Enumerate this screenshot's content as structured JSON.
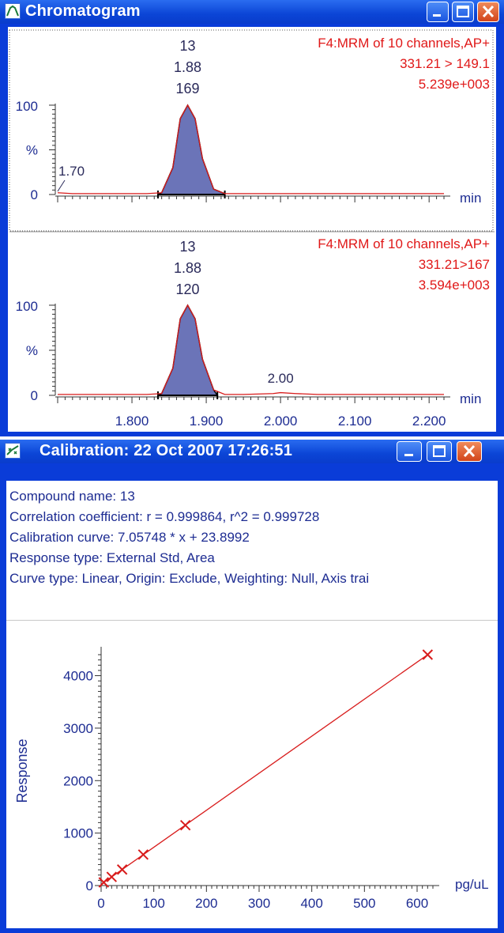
{
  "chromatogram_window": {
    "title": "Chromatogram",
    "icon": "chromatogram-peak-icon",
    "controls": [
      "minimize-icon",
      "maximize-icon",
      "close-icon"
    ]
  },
  "calibration_window": {
    "title": "Calibration: 22 Oct 2007 17:26:51",
    "icon": "calibration-curve-icon",
    "controls": [
      "minimize-icon",
      "maximize-icon",
      "close-icon"
    ],
    "info": {
      "compound": "Compound name: 13",
      "correlation": "Correlation coefficient: r = 0.999864, r^2 = 0.999728",
      "curve": "Calibration curve: 7.05748 * x + 23.8992",
      "response_type": "Response type: External Std, Area",
      "curve_type": "Curve type: Linear, Origin: Exclude, Weighting: Null, Axis trai"
    }
  },
  "colors": {
    "window_frame": "#0a3cd8",
    "trace": "#d81c1c",
    "peak_fill": "#6b74b8",
    "axis_text": "#1d2c92",
    "annotation_text": "#e01818"
  },
  "chart_data": [
    {
      "type": "line",
      "peak_label": [
        "13",
        "1.88",
        "169"
      ],
      "annotation": [
        "F4:MRM of 10 channels,AP+",
        "331.21 > 149.1",
        "5.239e+003"
      ],
      "y_ticks": [
        "100",
        "%",
        "0"
      ],
      "x_unit": "min",
      "extra_label": "1.70",
      "xlim": [
        1.7,
        2.22
      ],
      "ylim": [
        0,
        100
      ],
      "x": [
        1.7,
        1.72,
        1.75,
        1.78,
        1.8,
        1.82,
        1.84,
        1.855,
        1.865,
        1.875,
        1.885,
        1.895,
        1.91,
        1.925,
        1.95,
        1.99,
        2.05,
        2.1,
        2.15,
        2.22
      ],
      "values": [
        2,
        1,
        1,
        1,
        1,
        1,
        2,
        30,
        85,
        100,
        85,
        40,
        6,
        1,
        1,
        1,
        1,
        1,
        1,
        1
      ],
      "peak_range": [
        1.835,
        1.925
      ]
    },
    {
      "type": "line",
      "peak_label": [
        "13",
        "1.88",
        "120"
      ],
      "annotation": [
        "F4:MRM of 10 channels,AP+",
        "331.21>167",
        "3.594e+003"
      ],
      "y_ticks": [
        "100",
        "%",
        "0"
      ],
      "x_unit": "min",
      "extra_label": "2.00",
      "xlim": [
        1.7,
        2.22
      ],
      "ylim": [
        0,
        100
      ],
      "x_tick_labels": [
        "1.800",
        "1.900",
        "2.000",
        "2.100",
        "2.200"
      ],
      "x": [
        1.7,
        1.72,
        1.75,
        1.78,
        1.8,
        1.82,
        1.84,
        1.855,
        1.865,
        1.875,
        1.885,
        1.895,
        1.91,
        1.925,
        1.95,
        1.99,
        2.0,
        2.02,
        2.05,
        2.1,
        2.15,
        2.22
      ],
      "values": [
        1,
        1,
        1,
        1,
        1,
        1,
        2,
        30,
        85,
        100,
        85,
        40,
        6,
        1,
        1,
        2,
        3,
        2,
        1,
        1,
        1,
        1
      ],
      "peak_range": [
        1.835,
        1.915
      ]
    },
    {
      "type": "scatter",
      "ylabel": "Response",
      "x_unit": "pg/uL",
      "xlim": [
        0,
        630
      ],
      "ylim": [
        0,
        4400
      ],
      "x_tick_labels": [
        "0",
        "100",
        "200",
        "300",
        "400",
        "500",
        "600"
      ],
      "y_tick_labels": [
        "0",
        "1000",
        "2000",
        "3000",
        "4000"
      ],
      "points": [
        [
          5,
          60
        ],
        [
          20,
          165
        ],
        [
          40,
          305
        ],
        [
          80,
          590
        ],
        [
          160,
          1150
        ],
        [
          620,
          4400
        ]
      ],
      "fit_line": {
        "slope": 7.05748,
        "intercept": 23.8992
      }
    }
  ]
}
